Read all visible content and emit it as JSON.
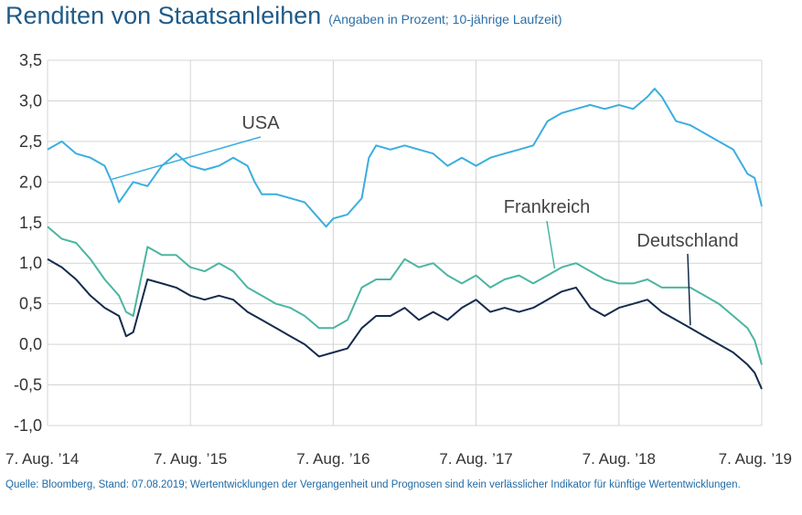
{
  "header": {
    "title": "Renditen von Staatsanleihen",
    "subtitle": "(Angaben in Prozent; 10-jährige Laufzeit)"
  },
  "footer": {
    "source": "Quelle: Bloomberg, Stand: 07.08.2019; Wertentwicklungen der Vergangenheit und Prognosen sind kein verlässlicher Indikator für künftige Wertentwicklungen."
  },
  "chart_data": {
    "type": "line",
    "title": "Renditen von Staatsanleihen",
    "subtitle": "(Angaben in Prozent; 10-jährige Laufzeit)",
    "xlabel": "",
    "ylabel": "",
    "ylim": [
      -1.0,
      3.5
    ],
    "xlim": [
      2014.6,
      2019.6
    ],
    "grid": true,
    "legend": "inline labels",
    "y_ticks": [
      3.5,
      3.0,
      2.5,
      2.0,
      1.5,
      1.0,
      0.5,
      0.0,
      -0.5,
      -1.0
    ],
    "y_tick_labels": [
      "3,5",
      "3,0",
      "2,5",
      "2,0",
      "1,5",
      "1,0",
      "0,5",
      "0,0",
      "-0,5",
      "-1,0"
    ],
    "x_ticks": [
      2014.6,
      2015.6,
      2016.6,
      2017.6,
      2018.6,
      2019.6
    ],
    "x_tick_labels": [
      "7. Aug. ’14",
      "7. Aug. ’15",
      "7. Aug. ’16",
      "7. Aug. ’17",
      "7. Aug. ’18",
      "7. Aug. ’19"
    ],
    "series": [
      {
        "name": "USA",
        "color": "#3aaee0",
        "x": [
          2014.6,
          2014.7,
          2014.8,
          2014.9,
          2015.0,
          2015.05,
          2015.1,
          2015.2,
          2015.3,
          2015.4,
          2015.5,
          2015.6,
          2015.7,
          2015.8,
          2015.9,
          2016.0,
          2016.05,
          2016.1,
          2016.2,
          2016.3,
          2016.4,
          2016.5,
          2016.55,
          2016.6,
          2016.7,
          2016.8,
          2016.85,
          2016.9,
          2017.0,
          2017.1,
          2017.2,
          2017.3,
          2017.4,
          2017.5,
          2017.6,
          2017.7,
          2017.8,
          2017.9,
          2018.0,
          2018.1,
          2018.2,
          2018.3,
          2018.4,
          2018.5,
          2018.6,
          2018.7,
          2018.8,
          2018.85,
          2018.9,
          2019.0,
          2019.1,
          2019.2,
          2019.3,
          2019.4,
          2019.5,
          2019.55,
          2019.6
        ],
        "y": [
          2.4,
          2.5,
          2.35,
          2.3,
          2.2,
          2.0,
          1.75,
          2.0,
          1.95,
          2.2,
          2.35,
          2.2,
          2.15,
          2.2,
          2.3,
          2.2,
          2.0,
          1.85,
          1.85,
          1.8,
          1.75,
          1.55,
          1.45,
          1.55,
          1.6,
          1.8,
          2.3,
          2.45,
          2.4,
          2.45,
          2.4,
          2.35,
          2.2,
          2.3,
          2.2,
          2.3,
          2.35,
          2.4,
          2.45,
          2.75,
          2.85,
          2.9,
          2.95,
          2.9,
          2.95,
          2.9,
          3.05,
          3.15,
          3.05,
          2.75,
          2.7,
          2.6,
          2.5,
          2.4,
          2.1,
          2.05,
          1.7
        ]
      },
      {
        "name": "Frankreich",
        "color": "#4bb5a1",
        "x": [
          2014.6,
          2014.7,
          2014.8,
          2014.9,
          2015.0,
          2015.1,
          2015.15,
          2015.2,
          2015.3,
          2015.4,
          2015.5,
          2015.6,
          2015.7,
          2015.8,
          2015.9,
          2016.0,
          2016.1,
          2016.2,
          2016.3,
          2016.4,
          2016.5,
          2016.6,
          2016.7,
          2016.8,
          2016.9,
          2017.0,
          2017.1,
          2017.2,
          2017.3,
          2017.4,
          2017.5,
          2017.6,
          2017.7,
          2017.8,
          2017.9,
          2018.0,
          2018.1,
          2018.2,
          2018.3,
          2018.4,
          2018.5,
          2018.6,
          2018.7,
          2018.8,
          2018.9,
          2019.0,
          2019.1,
          2019.2,
          2019.3,
          2019.4,
          2019.5,
          2019.55,
          2019.6
        ],
        "y": [
          1.45,
          1.3,
          1.25,
          1.05,
          0.8,
          0.6,
          0.4,
          0.35,
          1.2,
          1.1,
          1.1,
          0.95,
          0.9,
          1.0,
          0.9,
          0.7,
          0.6,
          0.5,
          0.45,
          0.35,
          0.2,
          0.2,
          0.3,
          0.7,
          0.8,
          0.8,
          1.05,
          0.95,
          1.0,
          0.85,
          0.75,
          0.85,
          0.7,
          0.8,
          0.85,
          0.75,
          0.85,
          0.95,
          1.0,
          0.9,
          0.8,
          0.75,
          0.75,
          0.8,
          0.7,
          0.7,
          0.7,
          0.6,
          0.5,
          0.35,
          0.2,
          0.05,
          -0.25
        ]
      },
      {
        "name": "Deutschland",
        "color": "#142b4d",
        "x": [
          2014.6,
          2014.7,
          2014.8,
          2014.9,
          2015.0,
          2015.1,
          2015.15,
          2015.2,
          2015.3,
          2015.4,
          2015.5,
          2015.6,
          2015.7,
          2015.8,
          2015.9,
          2016.0,
          2016.1,
          2016.2,
          2016.3,
          2016.4,
          2016.5,
          2016.6,
          2016.7,
          2016.8,
          2016.9,
          2017.0,
          2017.1,
          2017.2,
          2017.3,
          2017.4,
          2017.5,
          2017.6,
          2017.7,
          2017.8,
          2017.9,
          2018.0,
          2018.1,
          2018.2,
          2018.3,
          2018.4,
          2018.5,
          2018.6,
          2018.7,
          2018.8,
          2018.9,
          2019.0,
          2019.1,
          2019.2,
          2019.3,
          2019.4,
          2019.5,
          2019.55,
          2019.6
        ],
        "y": [
          1.05,
          0.95,
          0.8,
          0.6,
          0.45,
          0.35,
          0.1,
          0.15,
          0.8,
          0.75,
          0.7,
          0.6,
          0.55,
          0.6,
          0.55,
          0.4,
          0.3,
          0.2,
          0.1,
          0.0,
          -0.15,
          -0.1,
          -0.05,
          0.2,
          0.35,
          0.35,
          0.45,
          0.3,
          0.4,
          0.3,
          0.45,
          0.55,
          0.4,
          0.45,
          0.4,
          0.45,
          0.55,
          0.65,
          0.7,
          0.45,
          0.35,
          0.45,
          0.5,
          0.55,
          0.4,
          0.3,
          0.2,
          0.1,
          0.0,
          -0.1,
          -0.25,
          -0.35,
          -0.55
        ]
      }
    ]
  }
}
